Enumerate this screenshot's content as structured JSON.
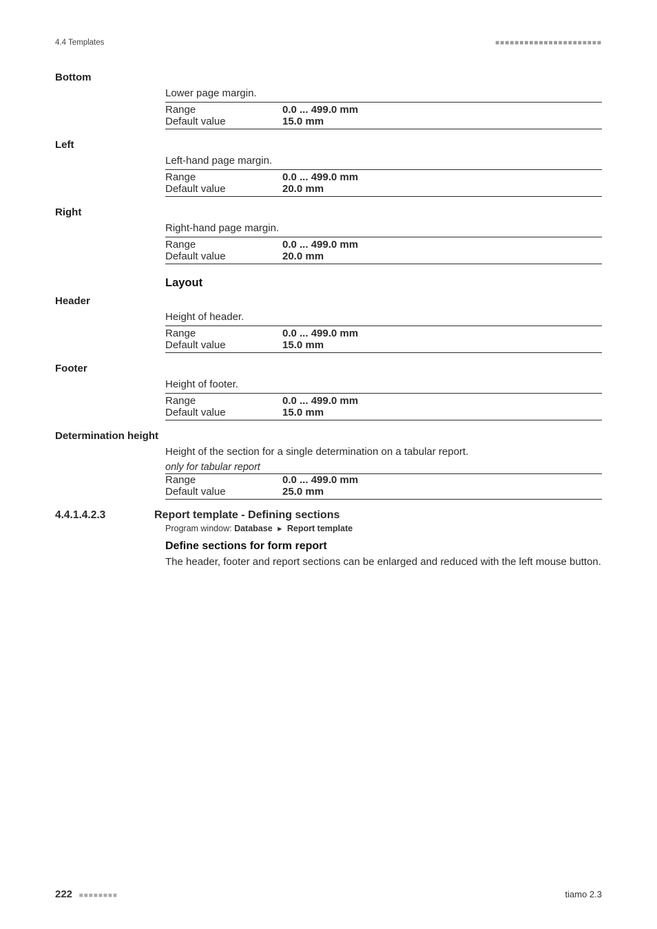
{
  "runningHeader": {
    "left": "4.4 Templates",
    "dots": "■■■■■■■■■■■■■■■■■■■■■■"
  },
  "params": [
    {
      "name": "Bottom",
      "desc": "Lower page margin.",
      "note": null,
      "rows": [
        {
          "label": "Range",
          "value": "0.0 ... 499.0 mm"
        },
        {
          "label": "Default value",
          "value": "15.0 mm"
        }
      ]
    },
    {
      "name": "Left",
      "desc": "Left-hand page margin.",
      "note": null,
      "rows": [
        {
          "label": "Range",
          "value": "0.0 ... 499.0 mm"
        },
        {
          "label": "Default value",
          "value": "20.0 mm"
        }
      ]
    },
    {
      "name": "Right",
      "desc": "Right-hand page margin.",
      "note": null,
      "rows": [
        {
          "label": "Range",
          "value": "0.0 ... 499.0 mm"
        },
        {
          "label": "Default value",
          "value": "20.0 mm"
        }
      ]
    }
  ],
  "layoutHeading": "Layout",
  "layoutParams": [
    {
      "name": "Header",
      "desc": "Height of header.",
      "note": null,
      "rows": [
        {
          "label": "Range",
          "value": "0.0 ... 499.0 mm"
        },
        {
          "label": "Default value",
          "value": "15.0 mm"
        }
      ]
    },
    {
      "name": "Footer",
      "desc": "Height of footer.",
      "note": null,
      "rows": [
        {
          "label": "Range",
          "value": "0.0 ... 499.0 mm"
        },
        {
          "label": "Default value",
          "value": "15.0 mm"
        }
      ]
    },
    {
      "name": "Determination height",
      "desc": "Height of the section for a single determination on a tabular report.",
      "note": "only for tabular report",
      "rows": [
        {
          "label": "Range",
          "value": "0.0 ... 499.0 mm"
        },
        {
          "label": "Default value",
          "value": "25.0 mm"
        }
      ]
    }
  ],
  "section": {
    "number": "4.4.1.4.2.3",
    "title": "Report template - Defining sections",
    "crumbPrefix": "Program window:",
    "crumb1": "Database",
    "crumb2": "Report template",
    "subheading": "Define sections for form report",
    "paragraph": "The header, footer and report sections can be enlarged and reduced with the left mouse button."
  },
  "footer": {
    "page": "222",
    "dots": "■■■■■■■■",
    "right": "tiamo 2.3"
  }
}
